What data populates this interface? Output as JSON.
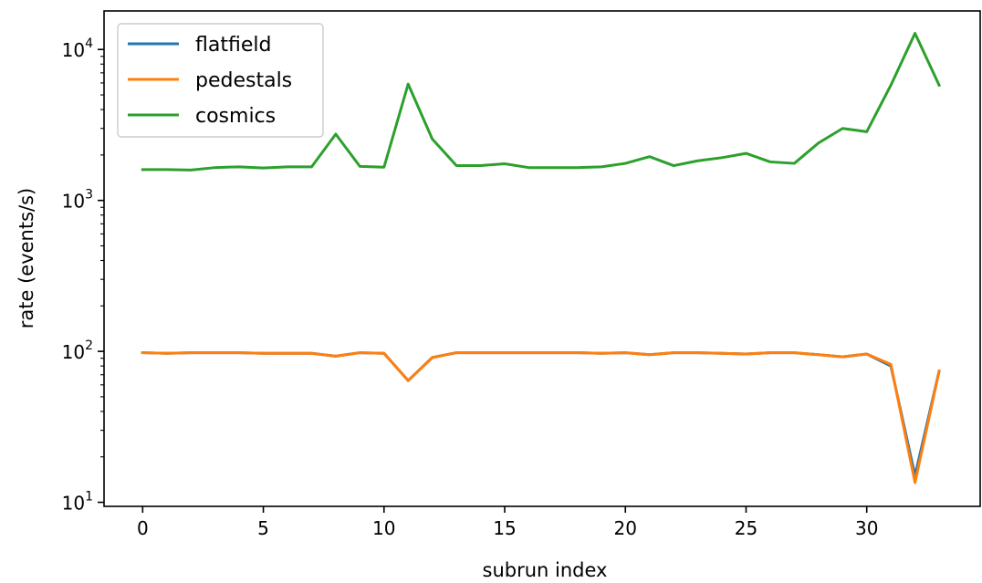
{
  "chart_data": {
    "type": "line",
    "title": "",
    "xlabel": "subrun index",
    "ylabel": "rate (events/s)",
    "xlim": [
      -1.6,
      34.7
    ],
    "ylim": [
      9.4,
      18000
    ],
    "yscale": "log",
    "grid": false,
    "legend_position": "top-left",
    "x_ticks": [
      0,
      5,
      10,
      15,
      20,
      25,
      30
    ],
    "y_ticks": [
      {
        "value": 10,
        "base": "10",
        "exp": "1"
      },
      {
        "value": 100,
        "base": "10",
        "exp": "2"
      },
      {
        "value": 1000,
        "base": "10",
        "exp": "3"
      },
      {
        "value": 10000,
        "base": "10",
        "exp": "4"
      }
    ],
    "x": [
      0,
      1,
      2,
      3,
      4,
      5,
      6,
      7,
      8,
      9,
      10,
      11,
      12,
      13,
      14,
      15,
      16,
      17,
      18,
      19,
      20,
      21,
      22,
      23,
      24,
      25,
      26,
      27,
      28,
      29,
      30,
      31,
      32,
      33
    ],
    "series": [
      {
        "name": "flatfield",
        "color": "#1f77b4",
        "values": [
          98,
          97,
          98,
          98,
          98,
          97,
          97,
          97,
          93,
          98,
          97,
          64,
          91,
          98,
          98,
          98,
          98,
          98,
          98,
          97,
          98,
          95,
          98,
          98,
          97,
          96,
          98,
          98,
          95,
          92,
          96,
          80,
          15,
          74
        ]
      },
      {
        "name": "pedestals",
        "color": "#ff7f0e",
        "values": [
          98,
          97,
          98,
          98,
          98,
          97,
          97,
          97,
          93,
          98,
          97,
          64,
          91,
          98,
          98,
          98,
          98,
          98,
          98,
          97,
          98,
          95,
          98,
          98,
          97,
          96,
          98,
          98,
          95,
          92,
          96,
          82,
          13.5,
          74
        ]
      },
      {
        "name": "cosmics",
        "color": "#2ca02c",
        "values": [
          1600,
          1600,
          1590,
          1650,
          1670,
          1640,
          1670,
          1670,
          2750,
          1680,
          1660,
          5900,
          2550,
          1700,
          1700,
          1750,
          1650,
          1650,
          1650,
          1670,
          1760,
          1950,
          1700,
          1830,
          1920,
          2050,
          1800,
          1760,
          2400,
          3000,
          2850,
          5800,
          12800,
          5800
        ]
      }
    ]
  }
}
